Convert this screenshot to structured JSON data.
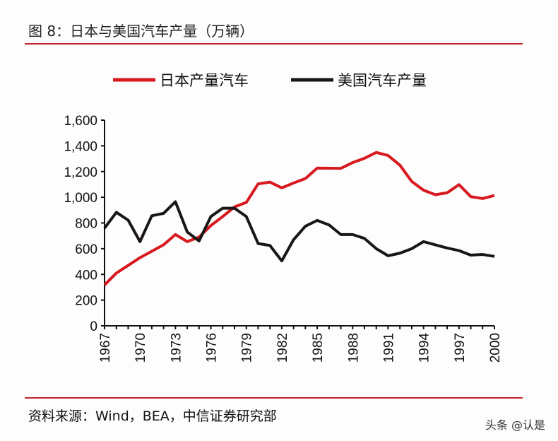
{
  "header": {
    "title": "图 8：日本与美国汽车产量（万辆）"
  },
  "footer": {
    "source": "资料来源：Wind，BEA，中信证券研究部",
    "watermark": "头条 @认是"
  },
  "chart_data": {
    "type": "line",
    "title": "图 8：日本与美国汽车产量（万辆）",
    "legend_position": "top",
    "grid": false,
    "ylim": [
      0,
      1600
    ],
    "yticks": [
      "0",
      "200",
      "400",
      "600",
      "800",
      "1,000",
      "1,200",
      "1,400",
      "1,600"
    ],
    "xticks": [
      "1967",
      "1970",
      "1973",
      "1976",
      "1979",
      "1982",
      "1985",
      "1988",
      "1991",
      "1994",
      "1997",
      "2000"
    ],
    "x": [
      1967,
      1968,
      1969,
      1970,
      1971,
      1972,
      1973,
      1974,
      1975,
      1976,
      1977,
      1978,
      1979,
      1980,
      1981,
      1982,
      1983,
      1984,
      1985,
      1986,
      1987,
      1988,
      1989,
      1990,
      1991,
      1992,
      1993,
      1994,
      1995,
      1996,
      1997,
      1998,
      1999,
      2000
    ],
    "series": [
      {
        "name": "日本产量汽车",
        "color": "#d7191f",
        "values": [
          318,
          410,
          470,
          530,
          580,
          630,
          710,
          655,
          690,
          780,
          850,
          925,
          960,
          1104,
          1118,
          1073,
          1111,
          1146,
          1227,
          1226,
          1225,
          1270,
          1303,
          1349,
          1325,
          1250,
          1123,
          1055,
          1020,
          1035,
          1098,
          1005,
          990,
          1014
        ]
      },
      {
        "name": "美国汽车产量",
        "color": "#1a1616",
        "values": [
          760,
          883,
          822,
          655,
          856,
          875,
          965,
          730,
          660,
          850,
          915,
          915,
          850,
          640,
          625,
          505,
          670,
          775,
          820,
          785,
          710,
          710,
          680,
          600,
          545,
          565,
          600,
          655,
          630,
          605,
          585,
          550,
          555,
          540
        ]
      }
    ]
  }
}
